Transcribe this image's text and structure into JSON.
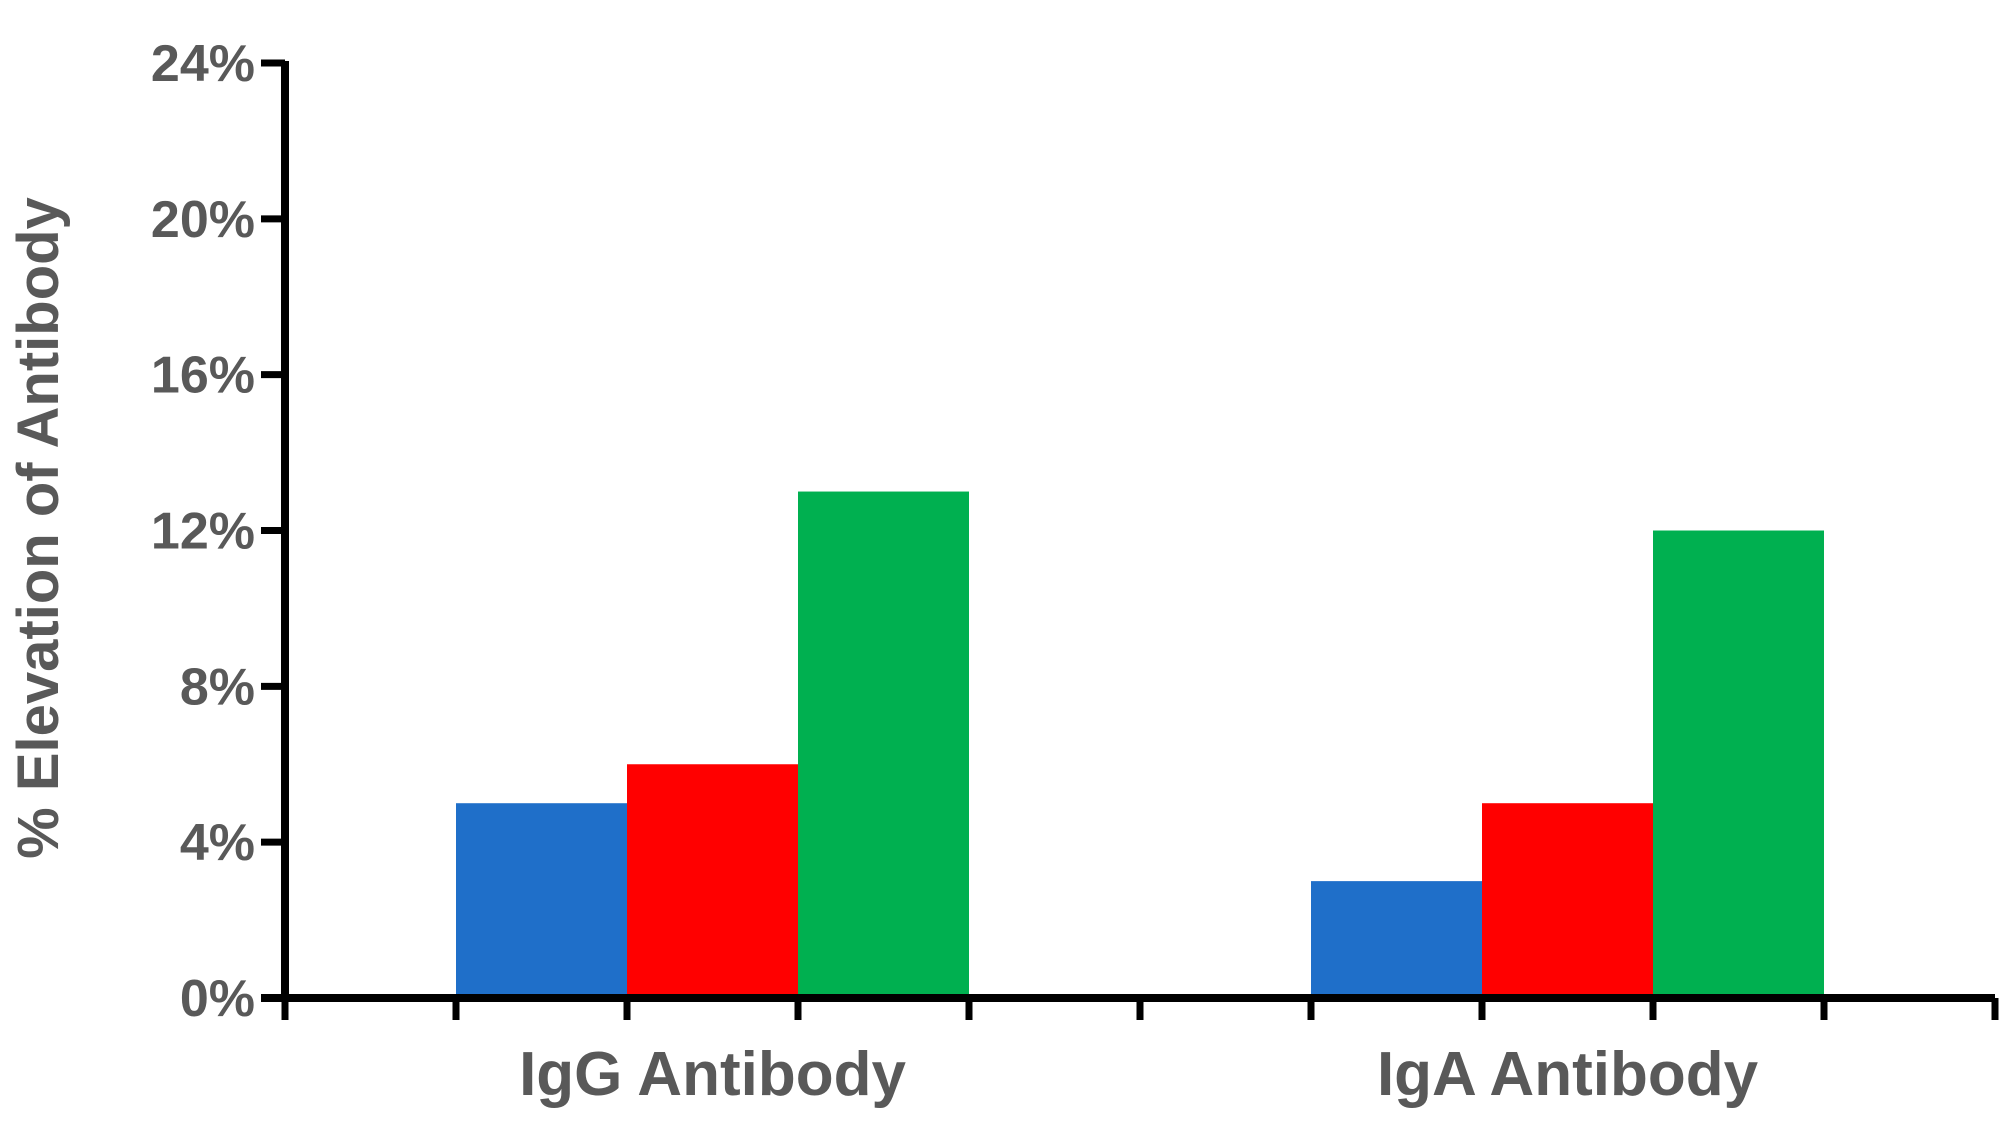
{
  "chart_data": {
    "type": "bar",
    "title": "",
    "xlabel": "",
    "ylabel": "% Elevation of Antibody",
    "categories": [
      "IgG Antibody",
      "IgA Antibody"
    ],
    "series": [
      {
        "color": "#1F6FC9",
        "values": [
          5,
          3
        ]
      },
      {
        "color": "#FF0000",
        "values": [
          6,
          5
        ]
      },
      {
        "color": "#00B050",
        "values": [
          13,
          12
        ]
      }
    ],
    "ylim": [
      0,
      24
    ],
    "yticks": [
      0,
      4,
      8,
      12,
      16,
      20,
      24
    ],
    "ytick_labels": [
      "0%",
      "4%",
      "8%",
      "12%",
      "16%",
      "20%",
      "24%"
    ],
    "grid": false,
    "legend": "none"
  }
}
